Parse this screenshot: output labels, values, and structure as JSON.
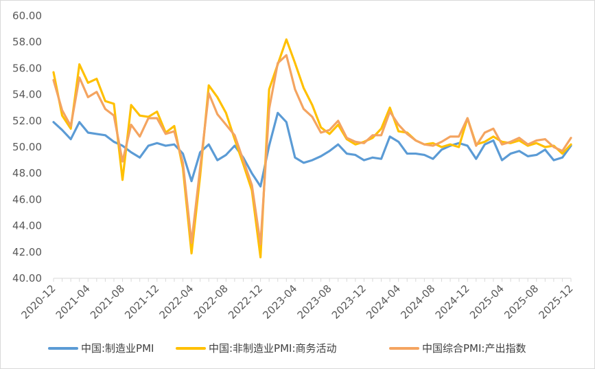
{
  "chart_data": {
    "type": "line",
    "ylim": [
      40,
      60
    ],
    "yticks": [
      "40.00",
      "42.00",
      "44.00",
      "46.00",
      "48.00",
      "50.00",
      "52.00",
      "54.00",
      "56.00",
      "58.00",
      "60.00"
    ],
    "x": [
      "2020-12",
      "2021-01",
      "2021-02",
      "2021-03",
      "2021-04",
      "2021-05",
      "2021-06",
      "2021-07",
      "2021-08",
      "2021-09",
      "2021-10",
      "2021-11",
      "2021-12",
      "2022-01",
      "2022-02",
      "2022-03",
      "2022-04",
      "2022-05",
      "2022-06",
      "2022-07",
      "2022-08",
      "2022-09",
      "2022-10",
      "2022-11",
      "2022-12",
      "2023-01",
      "2023-02",
      "2023-03",
      "2023-04",
      "2023-05",
      "2023-06",
      "2023-07",
      "2023-08",
      "2023-09",
      "2023-10",
      "2023-11",
      "2023-12",
      "2024-01",
      "2024-02",
      "2024-03",
      "2024-04",
      "2024-05",
      "2024-06",
      "2024-07",
      "2024-08",
      "2024-09",
      "2024-10",
      "2024-11",
      "2024-12",
      "2025-01",
      "2025-02",
      "2025-03",
      "2025-04",
      "2025-05",
      "2025-06",
      "2025-07",
      "2025-08",
      "2025-09",
      "2025-10",
      "2025-11",
      "2025-12"
    ],
    "xtick_labels": [
      "2020-12",
      "2021-04",
      "2021-08",
      "2021-12",
      "2022-04",
      "2022-08",
      "2022-12",
      "2023-04",
      "2023-08",
      "2023-12",
      "2024-04",
      "2024-08",
      "2024-12",
      "2025-04",
      "2025-08",
      "2025-12"
    ],
    "grid": false,
    "legend": "bottom",
    "series": [
      {
        "name": "中国:制造业PMI",
        "color": "#5b9bd5",
        "values": [
          51.9,
          51.3,
          50.6,
          51.9,
          51.1,
          51.0,
          50.9,
          50.4,
          50.1,
          49.6,
          49.2,
          50.1,
          50.3,
          50.1,
          50.2,
          49.5,
          47.4,
          49.6,
          50.2,
          49.0,
          49.4,
          50.1,
          49.2,
          48.0,
          47.0,
          50.1,
          52.6,
          51.9,
          49.2,
          48.8,
          49.0,
          49.3,
          49.7,
          50.2,
          49.5,
          49.4,
          49.0,
          49.2,
          49.1,
          50.8,
          50.4,
          49.5,
          49.5,
          49.4,
          49.1,
          49.8,
          50.1,
          50.3,
          50.1,
          49.1,
          50.2,
          50.5,
          49.0,
          49.5,
          49.7,
          49.3,
          49.4,
          49.8,
          49.0,
          49.2,
          50.1
        ]
      },
      {
        "name": "中国:非制造业PMI:商务活动",
        "color": "#ffc000",
        "values": [
          55.7,
          52.4,
          51.4,
          56.3,
          54.9,
          55.2,
          53.5,
          53.3,
          47.5,
          53.2,
          52.4,
          52.3,
          52.7,
          51.1,
          51.6,
          48.4,
          41.9,
          47.8,
          54.7,
          53.8,
          52.6,
          50.6,
          48.7,
          46.7,
          41.6,
          54.4,
          56.3,
          58.2,
          56.4,
          54.5,
          53.2,
          51.5,
          51.0,
          51.7,
          50.6,
          50.2,
          50.4,
          50.7,
          51.4,
          53.0,
          51.2,
          51.1,
          50.5,
          50.2,
          50.3,
          50.0,
          50.2,
          50.0,
          52.2,
          50.2,
          50.4,
          50.8,
          50.4,
          50.3,
          50.5,
          50.1,
          50.3,
          50.0,
          50.1,
          49.5,
          50.2
        ]
      },
      {
        "name": "中国综合PMI:产出指数",
        "color": "#f4a460",
        "values": [
          55.1,
          52.8,
          51.6,
          55.3,
          53.8,
          54.2,
          52.9,
          52.4,
          48.9,
          51.7,
          50.8,
          52.2,
          52.2,
          51.0,
          51.2,
          48.8,
          42.7,
          48.4,
          54.1,
          52.5,
          51.7,
          50.9,
          49.0,
          47.1,
          42.6,
          52.9,
          56.4,
          57.0,
          54.4,
          52.9,
          52.3,
          51.1,
          51.3,
          52.0,
          50.7,
          50.4,
          50.3,
          50.9,
          50.9,
          52.7,
          51.7,
          51.0,
          50.5,
          50.2,
          50.1,
          50.4,
          50.8,
          50.8,
          52.2,
          50.1,
          51.1,
          51.4,
          50.2,
          50.4,
          50.7,
          50.2,
          50.5,
          50.6,
          50.0,
          49.7,
          50.7
        ]
      }
    ]
  }
}
